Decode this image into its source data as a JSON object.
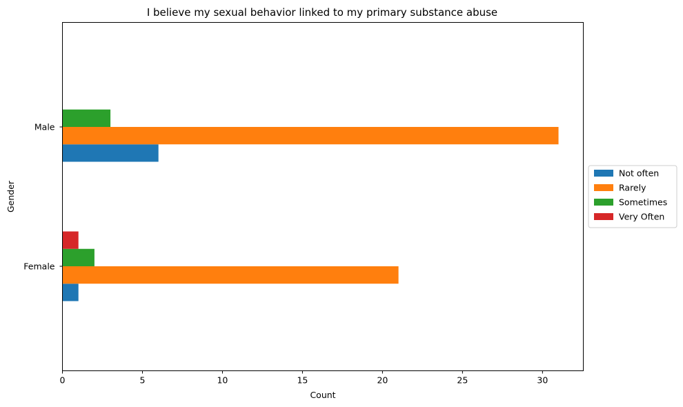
{
  "chart_data": {
    "type": "bar",
    "orientation": "horizontal",
    "title": "I believe my sexual behavior linked to my primary substance abuse",
    "xlabel": "Count",
    "ylabel": "Gender",
    "categories": [
      "Female",
      "Male"
    ],
    "xlim": [
      0,
      32.55
    ],
    "xticks": [
      0,
      5,
      10,
      15,
      20,
      25,
      30
    ],
    "grid": false,
    "legend_position": "center-right-outside",
    "series": [
      {
        "name": "Not often",
        "color": "#1f77b4",
        "values": [
          1,
          6
        ]
      },
      {
        "name": "Rarely",
        "color": "#ff7f0e",
        "values": [
          21,
          31
        ]
      },
      {
        "name": "Sometimes",
        "color": "#2ca02c",
        "values": [
          2,
          3
        ]
      },
      {
        "name": "Very Often",
        "color": "#d62728",
        "values": [
          1,
          0
        ]
      }
    ]
  }
}
